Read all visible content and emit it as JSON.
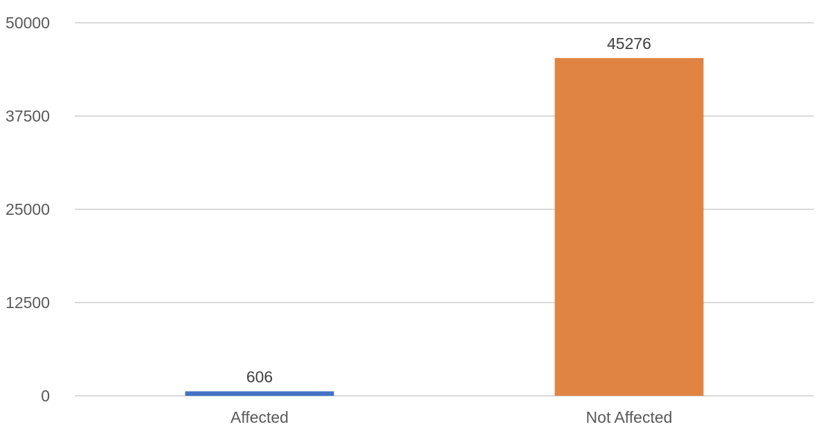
{
  "chart_data": {
    "type": "bar",
    "categories": [
      "Affected",
      "Not Affected"
    ],
    "values": [
      606,
      45276
    ],
    "data_labels": [
      "606",
      "45276"
    ],
    "ylim": [
      0,
      50000
    ],
    "yticks": [
      0,
      12500,
      25000,
      37500,
      50000
    ],
    "ytick_labels": [
      "0",
      "12500",
      "25000",
      "37500",
      "50000"
    ],
    "title": "",
    "xlabel": "",
    "ylabel": "",
    "grid": true,
    "legend": "none",
    "colors": [
      "#4472c4",
      "#e08444"
    ],
    "gridline_color": "#d9d9d9",
    "text_color": "#595959"
  }
}
